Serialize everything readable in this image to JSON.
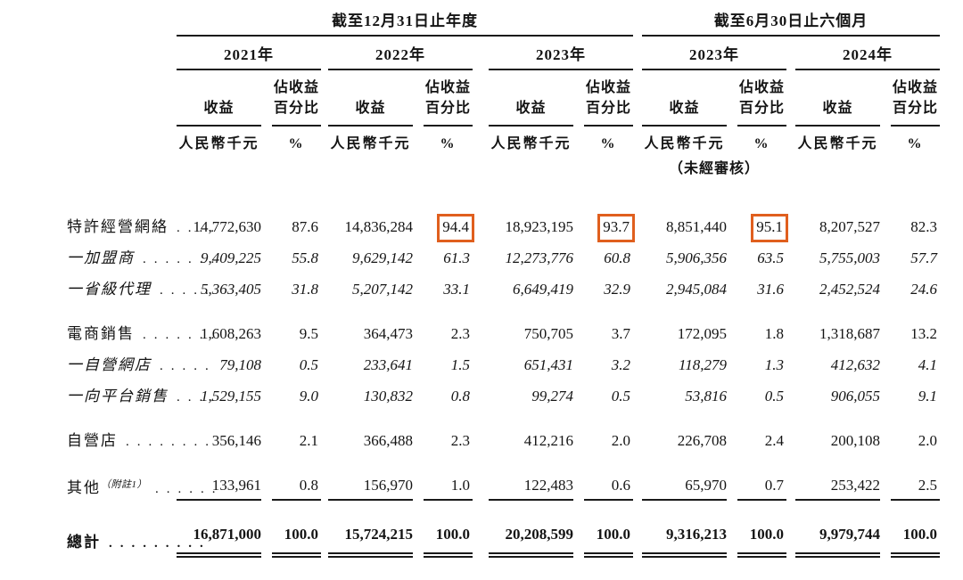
{
  "accent": {
    "highlight_box_color": "#e05f1e",
    "text_color": "#141414"
  },
  "header": {
    "groups": [
      {
        "title": "截至12月31日止年度",
        "years": [
          "2021年",
          "2022年",
          "2023年"
        ]
      },
      {
        "title": "截至6月30日止六個月",
        "years": [
          "2023年",
          "2024年"
        ]
      }
    ],
    "revenue_label": "收益",
    "pct_label_line1": "佔收益",
    "pct_label_line2": "百分比",
    "currency_label": "人民幣千元",
    "pct_unit": "%",
    "unaudited_note": "（未經審核）"
  },
  "rows": [
    {
      "key": "franchise-network",
      "label": "特許經營網絡",
      "note": "",
      "dots": "....",
      "italic": false,
      "bold": false,
      "rule": "none",
      "gap_before": false,
      "boxed": [
        3,
        5,
        7
      ],
      "values": [
        "14,772,630",
        "87.6",
        "14,836,284",
        "94.4",
        "18,923,195",
        "93.7",
        "8,851,440",
        "95.1",
        "8,207,527",
        "82.3"
      ]
    },
    {
      "key": "franchisees",
      "label": "一加盟商",
      "note": "",
      "dots": ".......",
      "italic": true,
      "bold": false,
      "rule": "none",
      "gap_before": false,
      "boxed": [],
      "values": [
        "9,409,225",
        "55.8",
        "9,629,142",
        "61.3",
        "12,273,776",
        "60.8",
        "5,906,356",
        "63.5",
        "5,755,003",
        "57.7"
      ]
    },
    {
      "key": "provincial-agents",
      "label": "一省級代理",
      "note": "",
      "dots": ".....",
      "italic": true,
      "bold": false,
      "rule": "none",
      "gap_before": false,
      "boxed": [],
      "values": [
        "5,363,405",
        "31.8",
        "5,207,142",
        "33.1",
        "6,649,419",
        "32.9",
        "2,945,084",
        "31.6",
        "2,452,524",
        "24.6"
      ]
    },
    {
      "key": "ecommerce-sales",
      "label": "電商銷售",
      "note": "",
      "dots": ".......",
      "italic": false,
      "bold": false,
      "rule": "none",
      "gap_before": true,
      "boxed": [],
      "values": [
        "1,608,263",
        "9.5",
        "364,473",
        "2.3",
        "750,705",
        "3.7",
        "172,095",
        "1.8",
        "1,318,687",
        "13.2"
      ]
    },
    {
      "key": "self-operated-online-store",
      "label": "一自營網店",
      "note": "",
      "dots": ".....",
      "italic": true,
      "bold": false,
      "rule": "none",
      "gap_before": false,
      "boxed": [],
      "values": [
        "79,108",
        "0.5",
        "233,641",
        "1.5",
        "651,431",
        "3.2",
        "118,279",
        "1.3",
        "412,632",
        "4.1"
      ]
    },
    {
      "key": "sales-to-platforms",
      "label": "一向平台銷售",
      "note": "",
      "dots": "....",
      "italic": true,
      "bold": false,
      "rule": "none",
      "gap_before": false,
      "boxed": [],
      "values": [
        "1,529,155",
        "9.0",
        "130,832",
        "0.8",
        "99,274",
        "0.5",
        "53,816",
        "0.5",
        "906,055",
        "9.1"
      ]
    },
    {
      "key": "self-operated-stores",
      "label": "自營店",
      "note": "",
      "dots": "........",
      "italic": false,
      "bold": false,
      "rule": "none",
      "gap_before": true,
      "boxed": [],
      "values": [
        "356,146",
        "2.1",
        "366,488",
        "2.3",
        "412,216",
        "2.0",
        "226,708",
        "2.4",
        "200,108",
        "2.0"
      ]
    },
    {
      "key": "others",
      "label": "其他",
      "note": "（附註1）",
      "dots": "......",
      "italic": false,
      "bold": false,
      "rule": "single",
      "gap_before": true,
      "boxed": [],
      "values": [
        "133,961",
        "0.8",
        "156,970",
        "1.0",
        "122,483",
        "0.6",
        "65,970",
        "0.7",
        "253,422",
        "2.5"
      ]
    },
    {
      "key": "total",
      "label": "總計",
      "note": "",
      "dots": ".........",
      "italic": false,
      "bold": true,
      "rule": "double",
      "gap_before": true,
      "boxed": [],
      "values": [
        "16,871,000",
        "100.0",
        "15,724,215",
        "100.0",
        "20,208,599",
        "100.0",
        "9,316,213",
        "100.0",
        "9,979,744",
        "100.0"
      ]
    }
  ]
}
